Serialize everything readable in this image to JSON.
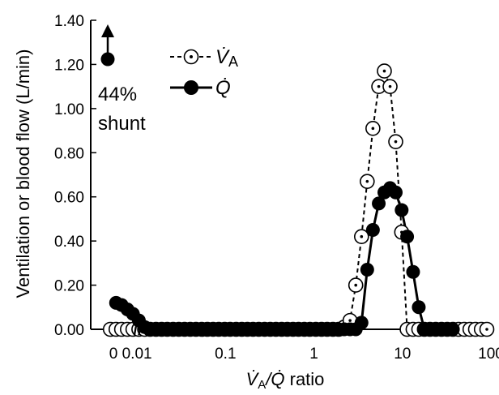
{
  "chart_data": {
    "type": "scatter",
    "x_scale": "log",
    "xlim": [
      0.003,
      100
    ],
    "ylim": [
      0,
      1.4
    ],
    "y_ticks": [
      "0.00",
      "0.20",
      "0.40",
      "0.60",
      "0.80",
      "1.00",
      "1.20",
      "1.40"
    ],
    "x_ticks": [
      "0",
      "0.01",
      "0.1",
      "1",
      "10",
      "100"
    ],
    "ylabel": "Ventilation or blood flow (L/min)",
    "xlabel": "V̇A/Q̇ ratio",
    "xlabel_suffix": " ratio",
    "axis_break": "//",
    "legend_position": "top-left",
    "annotation": {
      "line1": "44%",
      "line2": "shunt",
      "shunt_marker": "up-arrow-filled-dot"
    },
    "series": [
      {
        "name": "V̇A",
        "name_main": "V̇",
        "name_sub": "A",
        "marker": "open-circle-dot",
        "line": "dashed",
        "color": "#000000",
        "x": [
          0.005,
          0.0058,
          0.0067,
          0.0078,
          0.009,
          0.0105,
          0.0122,
          0.0141,
          0.0164,
          0.019,
          0.022,
          0.0256,
          0.0297,
          0.0345,
          0.04,
          0.0464,
          0.054,
          0.0625,
          0.0725,
          0.084,
          0.098,
          0.113,
          0.132,
          0.153,
          0.177,
          0.205,
          0.238,
          0.277,
          0.321,
          0.372,
          0.432,
          0.5,
          0.58,
          0.67,
          0.78,
          0.9,
          1.05,
          1.22,
          1.41,
          1.64,
          1.9,
          2.2,
          2.56,
          2.97,
          3.45,
          4.0,
          4.64,
          5.4,
          6.25,
          7.25,
          8.4,
          9.8,
          11.3,
          13.2,
          15.3,
          17.7,
          20.5,
          23.8,
          27.7,
          32.1,
          37.2,
          43.2,
          50.0,
          58.0,
          67.0,
          78.0,
          90.0
        ],
        "values": [
          0,
          0,
          0,
          0,
          0,
          0,
          0,
          0,
          0,
          0,
          0,
          0,
          0,
          0,
          0,
          0,
          0,
          0,
          0,
          0,
          0,
          0,
          0,
          0,
          0,
          0,
          0,
          0,
          0,
          0,
          0,
          0,
          0,
          0,
          0,
          0,
          0,
          0,
          0,
          0,
          0,
          0.01,
          0.04,
          0.2,
          0.42,
          0.67,
          0.91,
          1.1,
          1.17,
          1.1,
          0.85,
          0.44,
          0,
          0,
          0,
          0,
          0,
          0,
          0,
          0,
          0,
          0,
          0,
          0,
          0,
          0,
          0
        ]
      },
      {
        "name": "Q̇",
        "name_main": "Q̇",
        "name_sub": "",
        "marker": "filled-circle",
        "line": "solid",
        "color": "#000000",
        "x": [
          0.0058,
          0.0067,
          0.0078,
          0.009,
          0.0105,
          0.0122,
          0.0141,
          0.0164,
          0.019,
          0.022,
          0.0256,
          0.0297,
          0.0345,
          0.04,
          0.0464,
          0.054,
          0.0625,
          0.0725,
          0.084,
          0.098,
          0.113,
          0.132,
          0.153,
          0.177,
          0.205,
          0.238,
          0.277,
          0.321,
          0.372,
          0.432,
          0.5,
          0.58,
          0.67,
          0.78,
          0.9,
          1.05,
          1.22,
          1.41,
          1.64,
          1.9,
          2.2,
          2.56,
          2.97,
          3.45,
          4.0,
          4.64,
          5.4,
          6.25,
          7.25,
          8.4,
          9.8,
          11.3,
          13.2,
          15.3,
          17.7,
          20.5,
          23.8,
          27.7,
          32.1,
          37.2
        ],
        "values": [
          0.12,
          0.11,
          0.09,
          0.07,
          0.04,
          0.01,
          0,
          0,
          0,
          0,
          0,
          0,
          0,
          0,
          0,
          0,
          0,
          0,
          0,
          0,
          0,
          0,
          0,
          0,
          0,
          0,
          0,
          0,
          0,
          0,
          0,
          0,
          0,
          0,
          0,
          0,
          0,
          0,
          0,
          0,
          0,
          0,
          0,
          0.03,
          0.27,
          0.45,
          0.57,
          0.62,
          0.64,
          0.62,
          0.54,
          0.42,
          0.26,
          0.1,
          0,
          0,
          0,
          0,
          0,
          0
        ]
      }
    ]
  }
}
